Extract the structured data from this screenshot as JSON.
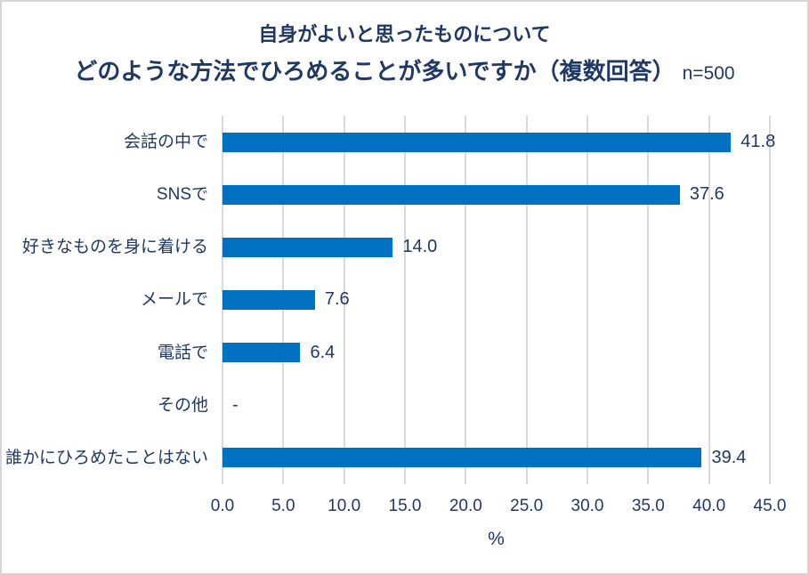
{
  "chart_data": {
    "type": "bar",
    "orientation": "horizontal",
    "title_line1": "自身がよいと思ったものについて",
    "title_line2": "どのような方法でひろめることが多いですか（複数回答）",
    "sample_size_label": "n=500",
    "categories": [
      "会話の中で",
      "SNSで",
      "好きなものを身に着ける",
      "メールで",
      "電話で",
      "その他",
      "誰かにひろめたことはない"
    ],
    "values": [
      41.8,
      37.6,
      14.0,
      7.6,
      6.4,
      null,
      39.4
    ],
    "value_labels": [
      "41.8",
      "37.6",
      "14.0",
      "7.6",
      "6.4",
      "-",
      "39.4"
    ],
    "xlabel": "%",
    "xlim": [
      0,
      45
    ],
    "x_ticks": [
      0,
      5,
      10,
      15,
      20,
      25,
      30,
      35,
      40,
      45
    ],
    "x_tick_labels": [
      "0.0",
      "5.0",
      "10.0",
      "15.0",
      "20.0",
      "25.0",
      "30.0",
      "35.0",
      "40.0",
      "45.0"
    ],
    "grid": "vertical-on",
    "legend": "none",
    "colors": {
      "bar": "#0070c0",
      "text": "#1f3864",
      "gridline": "#d9d9d9",
      "border": "#d5d5d5",
      "background": "#ffffff"
    }
  }
}
